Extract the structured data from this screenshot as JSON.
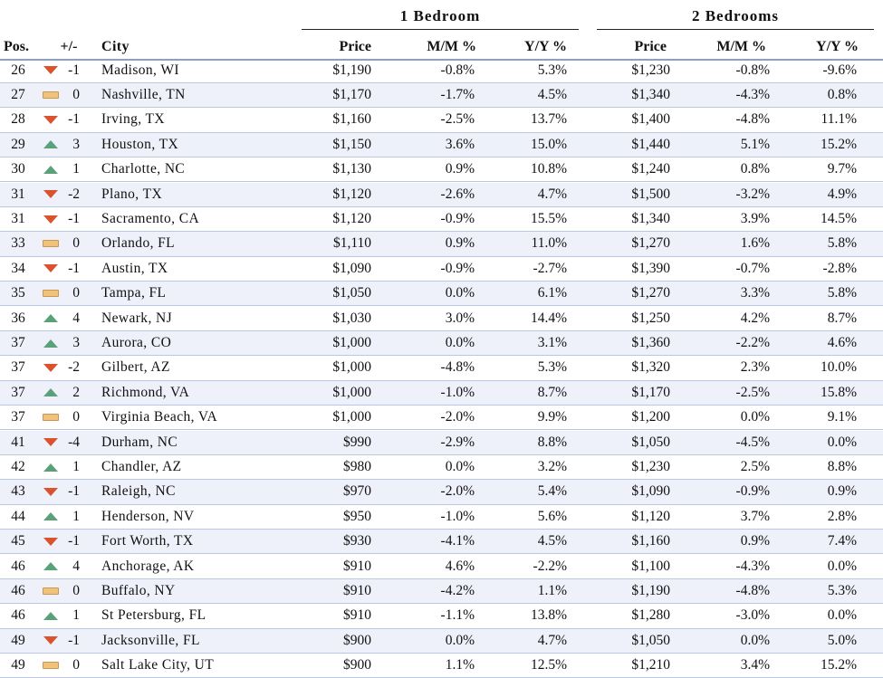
{
  "groups": {
    "one_bedroom": "1 Bedroom",
    "two_bedrooms": "2 Bedrooms"
  },
  "headers": {
    "pos": "Pos.",
    "change": "+/-",
    "city": "City",
    "price1": "Price",
    "mm1": "M/M %",
    "yy1": "Y/Y %",
    "price2": "Price",
    "mm2": "M/M %",
    "yy2": "Y/Y %"
  },
  "rows": [
    {
      "pos": "26",
      "trend": "down",
      "change": "-1",
      "city": "Madison, WI",
      "price1": "$1,190",
      "mm1": "-0.8%",
      "yy1": "5.3%",
      "price2": "$1,230",
      "mm2": "-0.8%",
      "yy2": "-9.6%"
    },
    {
      "pos": "27",
      "trend": "flat",
      "change": "0",
      "city": "Nashville, TN",
      "price1": "$1,170",
      "mm1": "-1.7%",
      "yy1": "4.5%",
      "price2": "$1,340",
      "mm2": "-4.3%",
      "yy2": "0.8%"
    },
    {
      "pos": "28",
      "trend": "down",
      "change": "-1",
      "city": "Irving, TX",
      "price1": "$1,160",
      "mm1": "-2.5%",
      "yy1": "13.7%",
      "price2": "$1,400",
      "mm2": "-4.8%",
      "yy2": "11.1%"
    },
    {
      "pos": "29",
      "trend": "up",
      "change": "3",
      "city": "Houston, TX",
      "price1": "$1,150",
      "mm1": "3.6%",
      "yy1": "15.0%",
      "price2": "$1,440",
      "mm2": "5.1%",
      "yy2": "15.2%"
    },
    {
      "pos": "30",
      "trend": "up",
      "change": "1",
      "city": "Charlotte, NC",
      "price1": "$1,130",
      "mm1": "0.9%",
      "yy1": "10.8%",
      "price2": "$1,240",
      "mm2": "0.8%",
      "yy2": "9.7%"
    },
    {
      "pos": "31",
      "trend": "down",
      "change": "-2",
      "city": "Plano, TX",
      "price1": "$1,120",
      "mm1": "-2.6%",
      "yy1": "4.7%",
      "price2": "$1,500",
      "mm2": "-3.2%",
      "yy2": "4.9%"
    },
    {
      "pos": "31",
      "trend": "down",
      "change": "-1",
      "city": "Sacramento, CA",
      "price1": "$1,120",
      "mm1": "-0.9%",
      "yy1": "15.5%",
      "price2": "$1,340",
      "mm2": "3.9%",
      "yy2": "14.5%"
    },
    {
      "pos": "33",
      "trend": "flat",
      "change": "0",
      "city": "Orlando, FL",
      "price1": "$1,110",
      "mm1": "0.9%",
      "yy1": "11.0%",
      "price2": "$1,270",
      "mm2": "1.6%",
      "yy2": "5.8%"
    },
    {
      "pos": "34",
      "trend": "down",
      "change": "-1",
      "city": "Austin, TX",
      "price1": "$1,090",
      "mm1": "-0.9%",
      "yy1": "-2.7%",
      "price2": "$1,390",
      "mm2": "-0.7%",
      "yy2": "-2.8%"
    },
    {
      "pos": "35",
      "trend": "flat",
      "change": "0",
      "city": "Tampa, FL",
      "price1": "$1,050",
      "mm1": "0.0%",
      "yy1": "6.1%",
      "price2": "$1,270",
      "mm2": "3.3%",
      "yy2": "5.8%"
    },
    {
      "pos": "36",
      "trend": "up",
      "change": "4",
      "city": "Newark, NJ",
      "price1": "$1,030",
      "mm1": "3.0%",
      "yy1": "14.4%",
      "price2": "$1,250",
      "mm2": "4.2%",
      "yy2": "8.7%"
    },
    {
      "pos": "37",
      "trend": "up",
      "change": "3",
      "city": "Aurora, CO",
      "price1": "$1,000",
      "mm1": "0.0%",
      "yy1": "3.1%",
      "price2": "$1,360",
      "mm2": "-2.2%",
      "yy2": "4.6%"
    },
    {
      "pos": "37",
      "trend": "down",
      "change": "-2",
      "city": "Gilbert, AZ",
      "price1": "$1,000",
      "mm1": "-4.8%",
      "yy1": "5.3%",
      "price2": "$1,320",
      "mm2": "2.3%",
      "yy2": "10.0%"
    },
    {
      "pos": "37",
      "trend": "up",
      "change": "2",
      "city": "Richmond, VA",
      "price1": "$1,000",
      "mm1": "-1.0%",
      "yy1": "8.7%",
      "price2": "$1,170",
      "mm2": "-2.5%",
      "yy2": "15.8%"
    },
    {
      "pos": "37",
      "trend": "flat",
      "change": "0",
      "city": "Virginia Beach, VA",
      "price1": "$1,000",
      "mm1": "-2.0%",
      "yy1": "9.9%",
      "price2": "$1,200",
      "mm2": "0.0%",
      "yy2": "9.1%"
    },
    {
      "pos": "41",
      "trend": "down",
      "change": "-4",
      "city": "Durham, NC",
      "price1": "$990",
      "mm1": "-2.9%",
      "yy1": "8.8%",
      "price2": "$1,050",
      "mm2": "-4.5%",
      "yy2": "0.0%"
    },
    {
      "pos": "42",
      "trend": "up",
      "change": "1",
      "city": "Chandler, AZ",
      "price1": "$980",
      "mm1": "0.0%",
      "yy1": "3.2%",
      "price2": "$1,230",
      "mm2": "2.5%",
      "yy2": "8.8%"
    },
    {
      "pos": "43",
      "trend": "down",
      "change": "-1",
      "city": "Raleigh, NC",
      "price1": "$970",
      "mm1": "-2.0%",
      "yy1": "5.4%",
      "price2": "$1,090",
      "mm2": "-0.9%",
      "yy2": "0.9%"
    },
    {
      "pos": "44",
      "trend": "up",
      "change": "1",
      "city": "Henderson, NV",
      "price1": "$950",
      "mm1": "-1.0%",
      "yy1": "5.6%",
      "price2": "$1,120",
      "mm2": "3.7%",
      "yy2": "2.8%"
    },
    {
      "pos": "45",
      "trend": "down",
      "change": "-1",
      "city": "Fort Worth, TX",
      "price1": "$930",
      "mm1": "-4.1%",
      "yy1": "4.5%",
      "price2": "$1,160",
      "mm2": "0.9%",
      "yy2": "7.4%"
    },
    {
      "pos": "46",
      "trend": "up",
      "change": "4",
      "city": "Anchorage, AK",
      "price1": "$910",
      "mm1": "4.6%",
      "yy1": "-2.2%",
      "price2": "$1,100",
      "mm2": "-4.3%",
      "yy2": "0.0%"
    },
    {
      "pos": "46",
      "trend": "flat",
      "change": "0",
      "city": "Buffalo, NY",
      "price1": "$910",
      "mm1": "-4.2%",
      "yy1": "1.1%",
      "price2": "$1,190",
      "mm2": "-4.8%",
      "yy2": "5.3%"
    },
    {
      "pos": "46",
      "trend": "up",
      "change": "1",
      "city": "St Petersburg, FL",
      "price1": "$910",
      "mm1": "-1.1%",
      "yy1": "13.8%",
      "price2": "$1,280",
      "mm2": "-3.0%",
      "yy2": "0.0%"
    },
    {
      "pos": "49",
      "trend": "down",
      "change": "-1",
      "city": "Jacksonville, FL",
      "price1": "$900",
      "mm1": "0.0%",
      "yy1": "4.7%",
      "price2": "$1,050",
      "mm2": "0.0%",
      "yy2": "5.0%"
    },
    {
      "pos": "49",
      "trend": "flat",
      "change": "0",
      "city": "Salt Lake City, UT",
      "price1": "$900",
      "mm1": "1.1%",
      "yy1": "12.5%",
      "price2": "$1,210",
      "mm2": "3.4%",
      "yy2": "15.2%"
    }
  ]
}
